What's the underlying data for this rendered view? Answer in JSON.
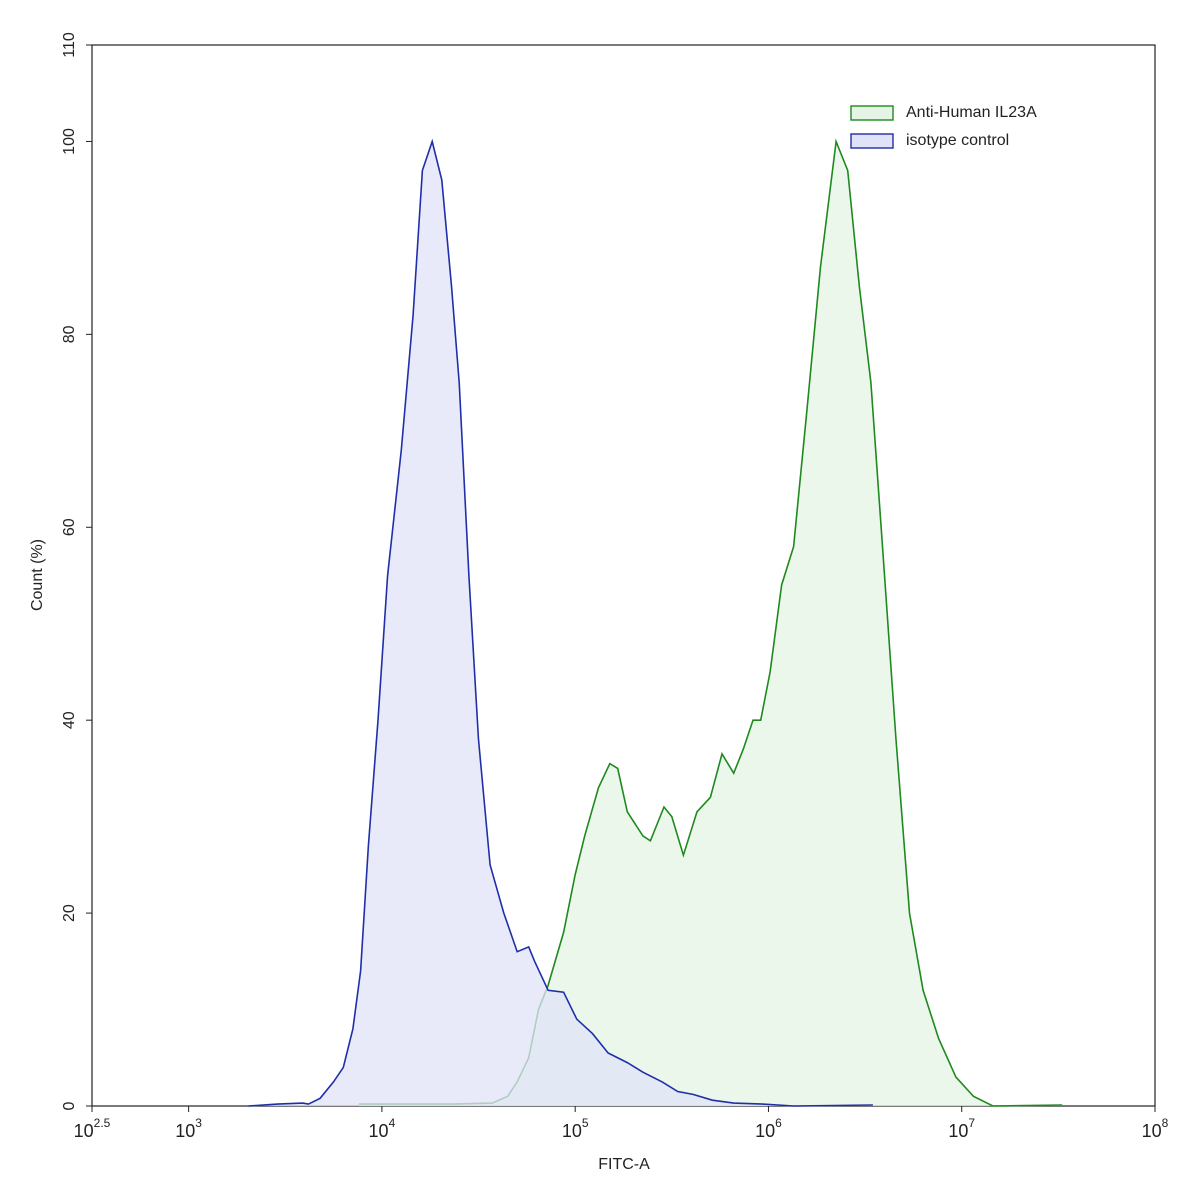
{
  "chart_data": {
    "type": "area",
    "x_label": "FITC-A",
    "y_label": "Count  (%)",
    "xscale": "log",
    "xlim": [
      316.2278,
      100000000
    ],
    "ylim": [
      0,
      110
    ],
    "xticks": [
      {
        "value": 316.2278,
        "label": "10",
        "exponent": "2.5"
      },
      {
        "value": 1000,
        "label": "10",
        "exponent": "3"
      },
      {
        "value": 10000,
        "label": "10",
        "exponent": "4"
      },
      {
        "value": 100000,
        "label": "10",
        "exponent": "5"
      },
      {
        "value": 1000000,
        "label": "10",
        "exponent": "6"
      },
      {
        "value": 10000000,
        "label": "10",
        "exponent": "7"
      },
      {
        "value": 100000000,
        "label": "10",
        "exponent": "8"
      }
    ],
    "yticks": [
      0,
      20,
      40,
      60,
      80,
      100,
      110
    ],
    "legend": "upper right",
    "series": [
      {
        "name": "Anti-Human IL23A",
        "color": "#1e8a1e",
        "fill": "#e6f4e6",
        "x": [
          7590,
          12900,
          23400,
          37200,
          44700,
          50100,
          57500,
          64600,
          72400,
          87100,
          100000,
          112000,
          132000,
          151000,
          166000,
          186000,
          224000,
          245000,
          288000,
          316000,
          363000,
          427000,
          501000,
          575000,
          661000,
          741000,
          832000,
          912000,
          1020000,
          1170000,
          1350000,
          1580000,
          1860000,
          2240000,
          2570000,
          2950000,
          3390000,
          3890000,
          4570000,
          5370000,
          6310000,
          7590000,
          9330000,
          11500000,
          14500000,
          33100000
        ],
        "values": [
          0.2,
          0.2,
          0.2,
          0.3,
          1,
          2.5,
          5,
          10,
          12.5,
          18,
          24,
          28,
          33,
          35.5,
          35,
          30.5,
          28,
          27.5,
          31,
          30,
          26,
          30.5,
          32,
          36.5,
          34.5,
          37,
          40,
          40,
          45,
          54,
          58,
          72,
          87,
          100,
          97,
          85,
          75,
          58,
          38,
          20,
          12,
          7,
          3,
          1,
          0,
          0.1
        ]
      },
      {
        "name": "isotype control",
        "color": "#1f2fa8",
        "fill": "#e0e3f8",
        "x": [
          2040,
          2880,
          3890,
          4170,
          4790,
          5620,
          6310,
          7080,
          7760,
          8510,
          9550,
          10700,
          12600,
          14500,
          16200,
          18200,
          20400,
          22900,
          25100,
          28200,
          31600,
          36300,
          42700,
          50100,
          57500,
          61700,
          72400,
          87100,
          102000,
          123000,
          148000,
          186000,
          224000,
          282000,
          339000,
          407000,
          513000,
          661000,
          933000,
          1350000,
          3470000
        ],
        "values": [
          0,
          0.2,
          0.3,
          0.2,
          0.8,
          2.5,
          4,
          8,
          14,
          27,
          40,
          55,
          68,
          82,
          97,
          100,
          96,
          85,
          75,
          55,
          38,
          25,
          20,
          16,
          16.5,
          15,
          12,
          11.8,
          9,
          7.5,
          5.5,
          4.5,
          3.5,
          2.5,
          1.5,
          1.2,
          0.6,
          0.3,
          0.2,
          0,
          0.1
        ]
      }
    ]
  }
}
